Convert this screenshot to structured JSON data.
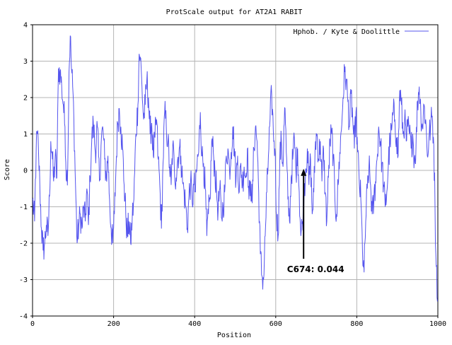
{
  "chart_data": {
    "type": "line",
    "title": "ProtScale output for AT2A1 RABIT",
    "xlabel": "Position",
    "ylabel": "Score",
    "xlim": [
      0,
      1000
    ],
    "ylim": [
      -4,
      4
    ],
    "xticks": [
      0,
      200,
      400,
      600,
      800,
      1000
    ],
    "yticks": [
      -4,
      -3,
      -2,
      -1,
      0,
      1,
      2,
      3,
      4
    ],
    "grid": true,
    "legend_position": "top-right",
    "series": [
      {
        "name": "Hphob. / Kyte & Doolittle",
        "color": "#5555ee",
        "x_start": 0,
        "x_step": 1,
        "anchors": [
          [
            0,
            -0.8
          ],
          [
            5,
            -1.4
          ],
          [
            9,
            0.6
          ],
          [
            12,
            1.0
          ],
          [
            15,
            0.4
          ],
          [
            18,
            -0.4
          ],
          [
            22,
            -1.6
          ],
          [
            26,
            -2.2
          ],
          [
            30,
            -2.0
          ],
          [
            34,
            -1.5
          ],
          [
            38,
            -1.8
          ],
          [
            42,
            -0.7
          ],
          [
            45,
            0.8
          ],
          [
            48,
            0.5
          ],
          [
            52,
            -0.3
          ],
          [
            56,
            0.4
          ],
          [
            60,
            -0.2
          ],
          [
            64,
            2.8
          ],
          [
            68,
            2.7
          ],
          [
            72,
            2.3
          ],
          [
            76,
            1.8
          ],
          [
            80,
            1.2
          ],
          [
            84,
            -0.3
          ],
          [
            87,
            0.2
          ],
          [
            90,
            2.7
          ],
          [
            93,
            3.7
          ],
          [
            96,
            2.8
          ],
          [
            99,
            2.3
          ],
          [
            102,
            1.4
          ],
          [
            106,
            -0.4
          ],
          [
            110,
            -2.0
          ],
          [
            114,
            -1.5
          ],
          [
            118,
            -1.2
          ],
          [
            122,
            -1.6
          ],
          [
            126,
            -1.0
          ],
          [
            130,
            -1.4
          ],
          [
            134,
            -0.5
          ],
          [
            138,
            -1.5
          ],
          [
            142,
            -0.2
          ],
          [
            146,
            0.8
          ],
          [
            150,
            1.3
          ],
          [
            155,
            0.5
          ],
          [
            160,
            1.2
          ],
          [
            165,
            -0.3
          ],
          [
            170,
            0.9
          ],
          [
            174,
            1.1
          ],
          [
            178,
            0.3
          ],
          [
            182,
            -0.2
          ],
          [
            186,
            0.4
          ],
          [
            190,
            -0.8
          ],
          [
            194,
            -1.6
          ],
          [
            198,
            -2.0
          ],
          [
            202,
            -1.2
          ],
          [
            206,
            0.1
          ],
          [
            210,
            1.3
          ],
          [
            214,
            1.7
          ],
          [
            218,
            1.2
          ],
          [
            222,
            0.6
          ],
          [
            226,
            -0.4
          ],
          [
            230,
            -1.2
          ],
          [
            234,
            -1.8
          ],
          [
            238,
            -1.4
          ],
          [
            242,
            -2.0
          ],
          [
            246,
            -1.3
          ],
          [
            250,
            -0.8
          ],
          [
            255,
            1.0
          ],
          [
            260,
            1.8
          ],
          [
            263,
            3.2
          ],
          [
            266,
            3.1
          ],
          [
            270,
            2.3
          ],
          [
            274,
            1.4
          ],
          [
            278,
            1.8
          ],
          [
            282,
            2.5
          ],
          [
            286,
            2.0
          ],
          [
            290,
            1.0
          ],
          [
            294,
            1.3
          ],
          [
            298,
            0.4
          ],
          [
            302,
            0.9
          ],
          [
            306,
            1.4
          ],
          [
            310,
            0.3
          ],
          [
            314,
            -0.4
          ],
          [
            318,
            -1.6
          ],
          [
            322,
            0.2
          ],
          [
            326,
            1.6
          ],
          [
            330,
            1.2
          ],
          [
            334,
            0.8
          ],
          [
            338,
            0.1
          ],
          [
            342,
            -0.4
          ],
          [
            346,
            0.7
          ],
          [
            350,
            0.0
          ],
          [
            354,
            -0.2
          ],
          [
            358,
            0.3
          ],
          [
            362,
            0.6
          ],
          [
            366,
            0.4
          ],
          [
            370,
            -0.3
          ],
          [
            374,
            -0.6
          ],
          [
            378,
            -1.0
          ],
          [
            382,
            -1.6
          ],
          [
            386,
            -0.7
          ],
          [
            390,
            -0.3
          ],
          [
            394,
            -0.9
          ],
          [
            398,
            -0.4
          ],
          [
            402,
            -0.6
          ],
          [
            406,
            0.2
          ],
          [
            410,
            0.5
          ],
          [
            414,
            1.6
          ],
          [
            418,
            0.4
          ],
          [
            422,
            0.2
          ],
          [
            426,
            -0.5
          ],
          [
            430,
            -1.8
          ],
          [
            434,
            -1.2
          ],
          [
            438,
            -0.8
          ],
          [
            442,
            0.8
          ],
          [
            446,
            0.5
          ],
          [
            450,
            0.0
          ],
          [
            454,
            -0.6
          ],
          [
            458,
            -1.1
          ],
          [
            462,
            -0.5
          ],
          [
            466,
            -1.3
          ],
          [
            470,
            -1.0
          ],
          [
            474,
            -0.6
          ],
          [
            478,
            0.4
          ],
          [
            482,
            0.6
          ],
          [
            486,
            0.0
          ],
          [
            490,
            0.5
          ],
          [
            494,
            1.2
          ],
          [
            498,
            0.6
          ],
          [
            502,
            -0.3
          ],
          [
            506,
            0.4
          ],
          [
            510,
            -0.6
          ],
          [
            514,
            0.2
          ],
          [
            518,
            -0.4
          ],
          [
            522,
            0.1
          ],
          [
            526,
            -0.2
          ],
          [
            530,
            0.6
          ],
          [
            534,
            -0.8
          ],
          [
            538,
            -0.3
          ],
          [
            542,
            -0.9
          ],
          [
            546,
            0.6
          ],
          [
            550,
            1.2
          ],
          [
            554,
            0.8
          ],
          [
            558,
            -0.6
          ],
          [
            562,
            -2.3
          ],
          [
            566,
            -2.9
          ],
          [
            570,
            -3.0
          ],
          [
            574,
            -1.8
          ],
          [
            578,
            -0.6
          ],
          [
            582,
            0.4
          ],
          [
            586,
            1.4
          ],
          [
            590,
            2.1
          ],
          [
            594,
            1.1
          ],
          [
            598,
            0.6
          ],
          [
            602,
            -1.2
          ],
          [
            606,
            -1.8
          ],
          [
            610,
            0.3
          ],
          [
            614,
            0.8
          ],
          [
            618,
            0.1
          ],
          [
            620,
            1.2
          ],
          [
            623,
            1.7
          ],
          [
            626,
            0.5
          ],
          [
            630,
            -0.8
          ],
          [
            634,
            -1.4
          ],
          [
            638,
            -0.2
          ],
          [
            642,
            0.3
          ],
          [
            646,
            0.9
          ],
          [
            650,
            -0.1
          ],
          [
            654,
            0.6
          ],
          [
            658,
            -0.6
          ],
          [
            662,
            -1.8
          ],
          [
            666,
            -1.4
          ],
          [
            670,
            -0.6
          ],
          [
            674,
            0.04
          ],
          [
            678,
            0.6
          ],
          [
            682,
            -0.4
          ],
          [
            686,
            0.3
          ],
          [
            690,
            -1.2
          ],
          [
            694,
            -0.6
          ],
          [
            698,
            0.8
          ],
          [
            702,
            1.0
          ],
          [
            706,
            0.3
          ],
          [
            710,
            0.8
          ],
          [
            714,
            -0.3
          ],
          [
            718,
            0.6
          ],
          [
            722,
            -0.6
          ],
          [
            726,
            -1.4
          ],
          [
            730,
            -0.2
          ],
          [
            734,
            0.8
          ],
          [
            738,
            1.0
          ],
          [
            742,
            0.4
          ],
          [
            746,
            -0.8
          ],
          [
            750,
            -1.2
          ],
          [
            754,
            -0.4
          ],
          [
            758,
            0.5
          ],
          [
            762,
            1.1
          ],
          [
            766,
            2.0
          ],
          [
            770,
            2.7
          ],
          [
            774,
            2.5
          ],
          [
            778,
            1.9
          ],
          [
            782,
            1.2
          ],
          [
            786,
            2.1
          ],
          [
            790,
            1.4
          ],
          [
            794,
            0.6
          ],
          [
            798,
            1.6
          ],
          [
            802,
            0.5
          ],
          [
            806,
            -0.3
          ],
          [
            810,
            -0.8
          ],
          [
            814,
            -2.2
          ],
          [
            818,
            -2.8
          ],
          [
            822,
            -1.4
          ],
          [
            826,
            -0.5
          ],
          [
            830,
            0.1
          ],
          [
            834,
            -0.4
          ],
          [
            838,
            -1.2
          ],
          [
            842,
            -0.9
          ],
          [
            846,
            -0.3
          ],
          [
            850,
            0.3
          ],
          [
            854,
            1.2
          ],
          [
            858,
            0.8
          ],
          [
            862,
            0.2
          ],
          [
            866,
            -0.4
          ],
          [
            870,
            -1.0
          ],
          [
            874,
            -0.6
          ],
          [
            878,
            0.2
          ],
          [
            882,
            0.8
          ],
          [
            886,
            1.1
          ],
          [
            890,
            1.6
          ],
          [
            894,
            1.4
          ],
          [
            898,
            0.9
          ],
          [
            902,
            0.4
          ],
          [
            906,
            2.2
          ],
          [
            910,
            1.8
          ],
          [
            914,
            1.0
          ],
          [
            918,
            1.4
          ],
          [
            922,
            0.8
          ],
          [
            926,
            1.2
          ],
          [
            930,
            1.0
          ],
          [
            934,
            0.6
          ],
          [
            938,
            1.0
          ],
          [
            942,
            0.3
          ],
          [
            946,
            0.6
          ],
          [
            950,
            1.9
          ],
          [
            954,
            2.3
          ],
          [
            958,
            1.6
          ],
          [
            962,
            1.2
          ],
          [
            966,
            1.8
          ],
          [
            970,
            1.4
          ],
          [
            974,
            0.4
          ],
          [
            978,
            0.9
          ],
          [
            982,
            1.2
          ],
          [
            986,
            1.5
          ],
          [
            990,
            0.7
          ],
          [
            993,
            -1.0
          ],
          [
            995,
            -2.3
          ],
          [
            997,
            -2.6
          ],
          [
            999,
            -3.6
          ]
        ]
      }
    ],
    "annotations": [
      {
        "text": "C674: 0.044",
        "x": 674,
        "y": 0.044
      }
    ]
  }
}
